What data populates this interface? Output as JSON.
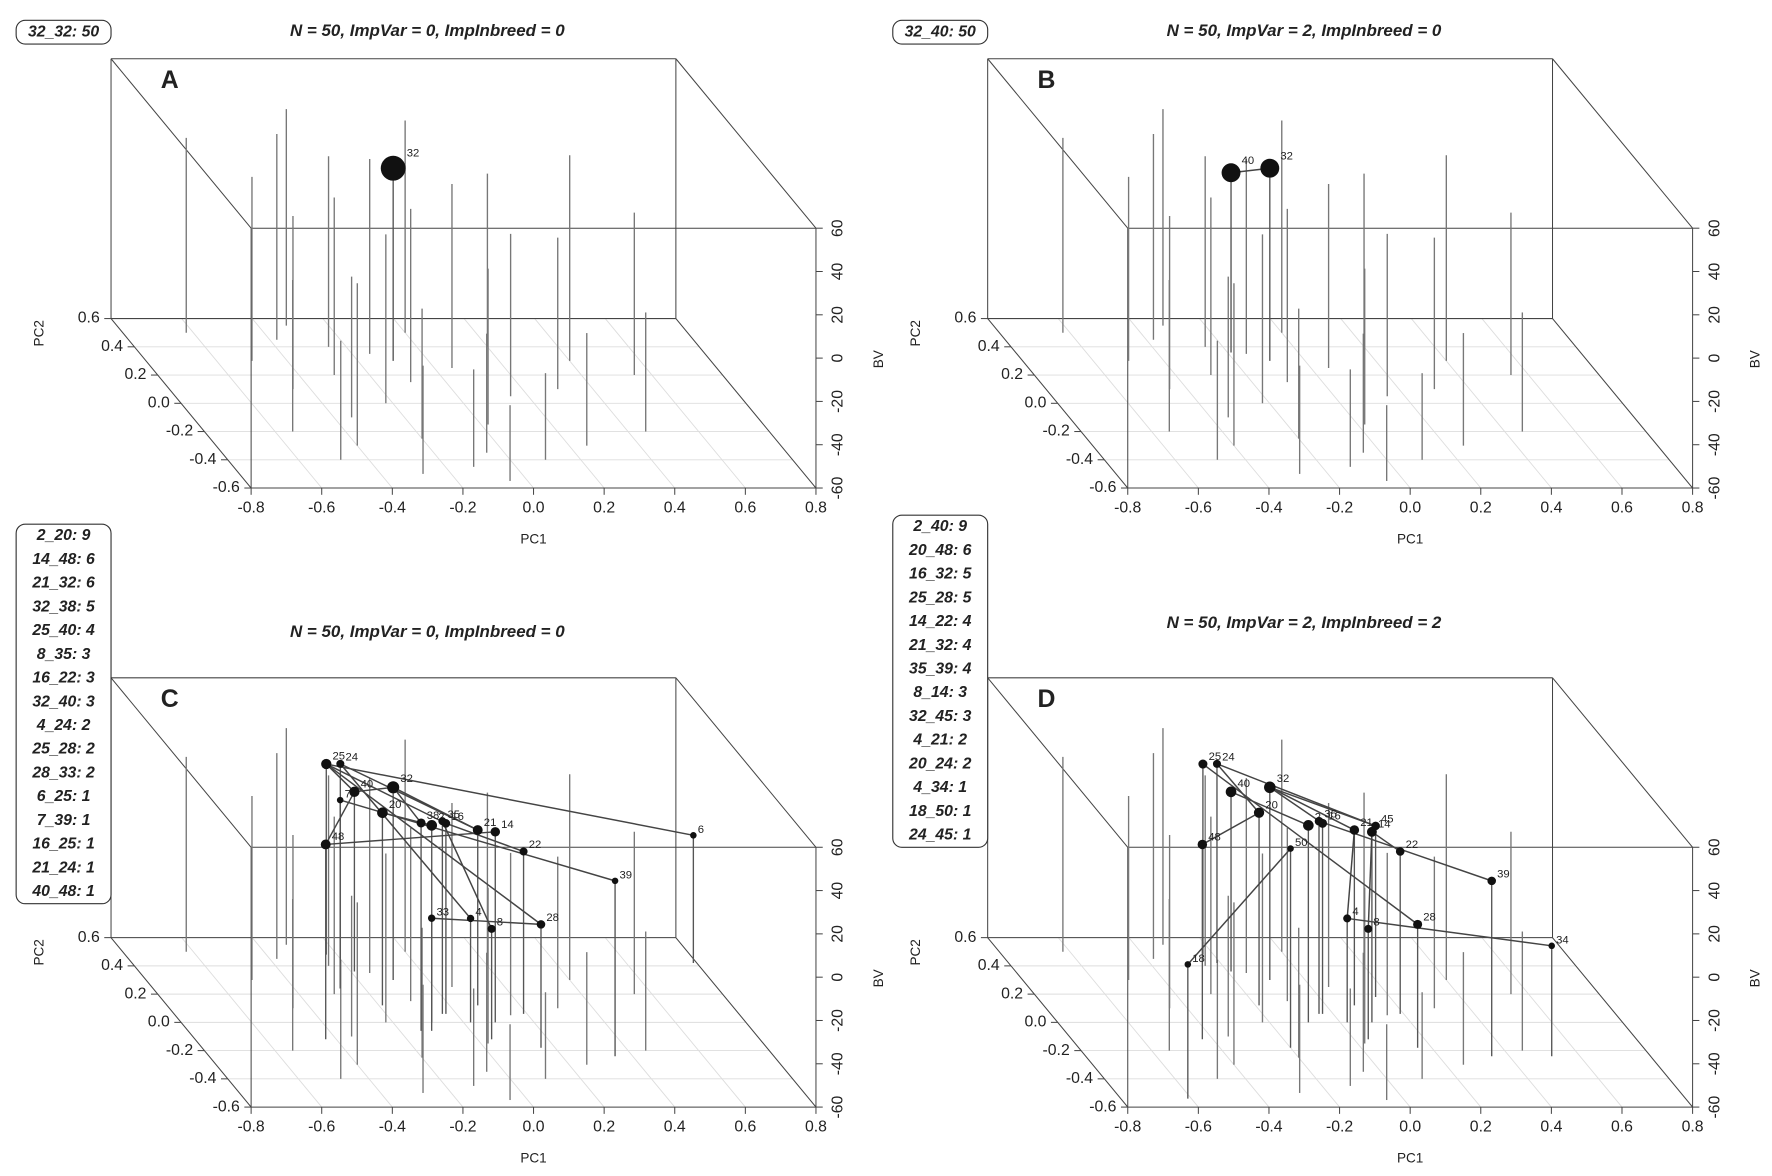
{
  "chart_data": [
    {
      "type": "scatter3d",
      "panel": "A",
      "title": "N = 50, ImpVar = 0, ImpInbreed = 0",
      "legend": [
        "32_32: 50"
      ],
      "xlabel": "PC1",
      "ylabel": "PC2",
      "zlabel": "BV",
      "xlim": [
        -0.8,
        0.8
      ],
      "xticks": [
        -0.8,
        -0.6,
        -0.4,
        -0.2,
        {
          "value": 0,
          "label": "0.0"
        },
        0.2,
        0.4,
        0.6,
        0.8
      ],
      "ylim": [
        -0.6,
        0.6
      ],
      "yticks": [
        -0.6,
        -0.4,
        -0.2,
        {
          "value": 0,
          "label": "0.0"
        },
        0.2,
        0.4,
        0.6
      ],
      "zlim": [
        -60,
        60
      ],
      "zticks": [
        -60,
        -40,
        -20,
        0,
        20,
        40,
        60
      ],
      "individuals": {
        "pc1": [
          -0.62,
          -0.55,
          -0.5,
          -0.48,
          -0.45,
          -0.4,
          -0.38,
          -0.35,
          -0.3,
          -0.28,
          -0.25,
          -0.22,
          -0.2,
          -0.15,
          -0.12,
          -0.1,
          -0.05,
          0.0,
          0.02,
          0.05,
          0.1,
          0.15,
          0.2,
          0.25,
          0.3,
          0.4,
          0.45,
          0.55,
          -0.32,
          -0.05
        ],
        "pc2": [
          0.5,
          -0.2,
          0.3,
          -0.4,
          0.1,
          -0.3,
          0.45,
          -0.1,
          0.2,
          -0.5,
          0.4,
          0.0,
          -0.25,
          0.35,
          -0.45,
          0.15,
          -0.35,
          0.5,
          -0.15,
          0.25,
          -0.4,
          0.05,
          0.4,
          -0.3,
          0.1,
          0.3,
          -0.2,
          0.2,
          0.55,
          -0.55
        ],
        "bv": [
          30,
          10,
          25,
          -5,
          20,
          15,
          35,
          5,
          22,
          -10,
          28,
          18,
          0,
          30,
          -15,
          20,
          -5,
          38,
          12,
          25,
          -20,
          15,
          20,
          -8,
          10,
          35,
          -5,
          15,
          40,
          -25
        ]
      },
      "points": {
        "labels": [
          "32"
        ],
        "pc1": [
          -0.1
        ],
        "pc2": [
          0.3
        ],
        "bv": [
          29
        ]
      }
    },
    {
      "type": "scatter3d",
      "panel": "B",
      "title": "N = 50, ImpVar = 2, ImpInbreed = 0",
      "legend": [
        "32_40: 50"
      ],
      "xlabel": "PC1",
      "ylabel": "PC2",
      "zlabel": "BV",
      "xlim": [
        -0.8,
        0.8
      ],
      "xticks": [
        -0.8,
        -0.6,
        -0.4,
        -0.2,
        {
          "value": 0,
          "label": "0.0"
        },
        0.2,
        0.4,
        0.6,
        0.8
      ],
      "ylim": [
        -0.6,
        0.6
      ],
      "yticks": [
        -0.6,
        -0.4,
        -0.2,
        {
          "value": 0,
          "label": "0.0"
        },
        0.2,
        0.4,
        0.6
      ],
      "zlim": [
        -60,
        60
      ],
      "zticks": [
        -60,
        -40,
        -20,
        0,
        20,
        40,
        60
      ],
      "individuals": {
        "pc1": [
          -0.62,
          -0.55,
          -0.5,
          -0.48,
          -0.45,
          -0.4,
          -0.38,
          -0.35,
          -0.3,
          -0.28,
          -0.25,
          -0.22,
          -0.2,
          -0.15,
          -0.12,
          -0.1,
          -0.05,
          0.0,
          0.02,
          0.05,
          0.1,
          0.15,
          0.2,
          0.25,
          0.3,
          0.4,
          0.45,
          0.55,
          -0.32,
          -0.05
        ],
        "pc2": [
          0.5,
          -0.2,
          0.3,
          -0.4,
          0.1,
          -0.3,
          0.45,
          -0.1,
          0.2,
          -0.5,
          0.4,
          0.0,
          -0.25,
          0.35,
          -0.45,
          0.15,
          -0.35,
          0.5,
          -0.15,
          0.25,
          -0.4,
          0.05,
          0.4,
          -0.3,
          0.1,
          0.3,
          -0.2,
          0.2,
          0.55,
          -0.55
        ],
        "bv": [
          30,
          10,
          25,
          -5,
          20,
          15,
          35,
          5,
          22,
          -10,
          28,
          18,
          0,
          30,
          -15,
          20,
          -5,
          38,
          12,
          25,
          -20,
          15,
          20,
          -8,
          10,
          35,
          -5,
          15,
          40,
          -25
        ]
      },
      "points": {
        "labels": [
          "40",
          "32"
        ],
        "pc1": [
          -0.19,
          -0.1
        ],
        "pc2": [
          0.36,
          0.3
        ],
        "bv": [
          23,
          29
        ]
      }
    },
    {
      "type": "scatter3d",
      "panel": "C",
      "title": "N = 50, ImpVar = 0, ImpInbreed = 0",
      "legend": [
        "2_20: 9",
        "14_48: 6",
        "21_32: 6",
        "32_38: 5",
        "25_40: 4",
        "8_35: 3",
        "16_22: 3",
        "32_40: 3",
        "4_24: 2",
        "25_28: 2",
        "28_33: 2",
        "6_25: 1",
        "7_39: 1",
        "16_25: 1",
        "21_24: 1",
        "40_48: 1"
      ],
      "xlabel": "PC1",
      "ylabel": "PC2",
      "zlabel": "BV",
      "xlim": [
        -0.8,
        0.8
      ],
      "xticks": [
        -0.8,
        -0.6,
        -0.4,
        -0.2,
        {
          "value": 0,
          "label": "0.0"
        },
        0.2,
        0.4,
        0.6,
        0.8
      ],
      "ylim": [
        -0.6,
        0.6
      ],
      "yticks": [
        -0.6,
        -0.4,
        -0.2,
        {
          "value": 0,
          "label": "0.0"
        },
        0.2,
        0.4,
        0.6
      ],
      "zlim": [
        -60,
        60
      ],
      "zticks": [
        -60,
        -40,
        -20,
        0,
        20,
        40,
        60
      ],
      "individuals": {
        "pc1": [
          -0.62,
          -0.55,
          -0.5,
          -0.48,
          -0.45,
          -0.4,
          -0.38,
          -0.35,
          -0.3,
          -0.28,
          -0.25,
          -0.22,
          -0.2,
          -0.15,
          -0.12,
          -0.1,
          -0.05,
          0.0,
          0.02,
          0.05,
          0.1,
          0.15,
          0.2,
          0.25,
          0.3,
          0.4,
          0.45,
          0.55,
          -0.32,
          -0.05
        ],
        "pc2": [
          0.5,
          -0.2,
          0.3,
          -0.4,
          0.1,
          -0.3,
          0.45,
          -0.1,
          0.2,
          -0.5,
          0.4,
          0.0,
          -0.25,
          0.35,
          -0.45,
          0.15,
          -0.35,
          0.5,
          -0.15,
          0.25,
          -0.4,
          0.05,
          0.4,
          -0.3,
          0.1,
          0.3,
          -0.2,
          0.2,
          0.55,
          -0.55
        ],
        "bv": [
          30,
          10,
          25,
          -5,
          20,
          15,
          35,
          5,
          22,
          -10,
          28,
          18,
          0,
          30,
          -15,
          20,
          -5,
          38,
          12,
          25,
          -20,
          15,
          20,
          -8,
          10,
          35,
          -5,
          15,
          40,
          -25
        ]
      },
      "points": {
        "labels": [
          "25",
          "24",
          "40",
          "32",
          "20",
          "16",
          "2",
          "38",
          "21",
          "14",
          "22",
          "7",
          "6",
          "48",
          "39",
          "33",
          "4",
          "8",
          "28",
          "35"
        ],
        "pc1": [
          -0.23,
          -0.21,
          -0.19,
          -0.1,
          -0.19,
          -0.03,
          -0.09,
          -0.14,
          0.08,
          0.09,
          0.19,
          -0.27,
          0.79,
          -0.43,
          0.35,
          -0.11,
          0.02,
          0.04,
          0.16,
          -0.04
        ],
        "pc2": [
          0.48,
          0.42,
          0.36,
          0.3,
          0.12,
          0.06,
          0.0,
          -0.06,
          0.12,
          0.0,
          0.06,
          0.24,
          0.42,
          -0.12,
          -0.24,
          -0.06,
          0.0,
          -0.12,
          -0.18,
          0.06
        ],
        "bv": [
          28,
          32,
          23,
          29,
          29,
          28,
          31,
          36,
          21,
          28,
          15,
          27,
          -1,
          30,
          21,
          -8,
          -12,
          -9,
          -3,
          29
        ]
      }
    },
    {
      "type": "scatter3d",
      "panel": "D",
      "title": "N = 50, ImpVar = 2, ImpInbreed = 2",
      "legend": [
        "2_40: 9",
        "20_48: 6",
        "16_32: 5",
        "25_28: 5",
        "14_22: 4",
        "21_32: 4",
        "35_39: 4",
        "8_14: 3",
        "32_45: 3",
        "4_21: 2",
        "20_24: 2",
        "4_34: 1",
        "18_50: 1",
        "24_45: 1"
      ],
      "xlabel": "PC1",
      "ylabel": "PC2",
      "zlabel": "BV",
      "xlim": [
        -0.8,
        0.8
      ],
      "xticks": [
        -0.8,
        -0.6,
        -0.4,
        -0.2,
        {
          "value": 0,
          "label": "0.0"
        },
        0.2,
        0.4,
        0.6,
        0.8
      ],
      "ylim": [
        -0.6,
        0.6
      ],
      "yticks": [
        -0.6,
        -0.4,
        -0.2,
        {
          "value": 0,
          "label": "0.0"
        },
        0.2,
        0.4,
        0.6
      ],
      "zlim": [
        -60,
        60
      ],
      "zticks": [
        -60,
        -40,
        -20,
        0,
        20,
        40,
        60
      ],
      "individuals": {
        "pc1": [
          -0.62,
          -0.55,
          -0.5,
          -0.48,
          -0.45,
          -0.4,
          -0.38,
          -0.35,
          -0.3,
          -0.28,
          -0.25,
          -0.22,
          -0.2,
          -0.15,
          -0.12,
          -0.1,
          -0.05,
          0.0,
          0.02,
          0.05,
          0.1,
          0.15,
          0.2,
          0.25,
          0.3,
          0.4,
          0.45,
          0.55,
          -0.32,
          -0.05
        ],
        "pc2": [
          0.5,
          -0.2,
          0.3,
          -0.4,
          0.1,
          -0.3,
          0.45,
          -0.1,
          0.2,
          -0.5,
          0.4,
          0.0,
          -0.25,
          0.35,
          -0.45,
          0.15,
          -0.35,
          0.5,
          -0.15,
          0.25,
          -0.4,
          0.05,
          0.4,
          -0.3,
          0.1,
          0.3,
          -0.2,
          0.2,
          0.55,
          -0.55
        ],
        "bv": [
          30,
          10,
          25,
          -5,
          20,
          15,
          35,
          5,
          22,
          -10,
          28,
          18,
          0,
          30,
          -15,
          20,
          -5,
          38,
          12,
          25,
          -20,
          15,
          20,
          -8,
          10,
          35,
          -5,
          15,
          40,
          -25
        ]
      },
      "points": {
        "labels": [
          "25",
          "24",
          "40",
          "32",
          "20",
          "16",
          "2",
          "21",
          "14",
          "22",
          "48",
          "39",
          "4",
          "8",
          "28",
          "35",
          "45",
          "34",
          "50",
          "18"
        ],
        "pc1": [
          -0.23,
          -0.21,
          -0.19,
          -0.1,
          -0.19,
          -0.03,
          -0.09,
          0.08,
          0.09,
          0.19,
          -0.43,
          0.35,
          0.02,
          0.04,
          0.16,
          -0.04,
          0.16,
          0.52,
          -0.2,
          -0.61
        ],
        "pc2": [
          0.48,
          0.42,
          0.36,
          0.3,
          0.12,
          0.06,
          0.0,
          0.12,
          0.0,
          0.06,
          -0.12,
          -0.24,
          0.0,
          -0.12,
          -0.18,
          0.06,
          0.18,
          -0.24,
          -0.18,
          -0.54
        ],
        "bv": [
          28,
          32,
          23,
          29,
          29,
          28,
          31,
          21,
          28,
          15,
          30,
          21,
          -12,
          -9,
          -3,
          29,
          19,
          -9,
          32,
          2
        ]
      }
    }
  ]
}
